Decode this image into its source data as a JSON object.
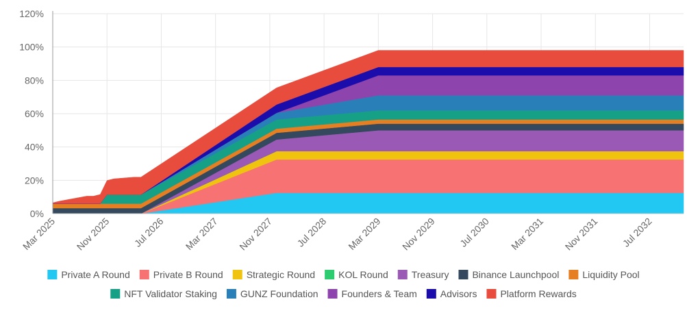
{
  "chart_data": {
    "type": "area",
    "stacked": true,
    "x": [
      "2025-03",
      "2025-04",
      "2025-08",
      "2025-09",
      "2025-10",
      "2025-11",
      "2025-12",
      "2026-03",
      "2026-04",
      "2027-12",
      "2029-03",
      "2032-12"
    ],
    "x_ticks": [
      "Mar 2025",
      "Nov 2025",
      "Jul 2026",
      "Mar 2027",
      "Nov 2027",
      "Jul 2028",
      "Mar 2029",
      "Nov 2029",
      "Jul 2030",
      "Mar 2031",
      "Nov 2031",
      "Jul 2032"
    ],
    "y_ticks": [
      "0%",
      "20%",
      "40%",
      "60%",
      "80%",
      "100%",
      "120%"
    ],
    "ylim": [
      0,
      120
    ],
    "y_unit": "%",
    "grid": true,
    "legend_position": "bottom",
    "series": [
      {
        "name": "Private A Round",
        "color": "#22c7f2",
        "values": [
          0,
          0,
          0,
          0,
          0,
          0,
          0,
          0,
          0,
          12.5,
          12.5,
          12.5
        ]
      },
      {
        "name": "Private B Round",
        "color": "#f77272",
        "values": [
          0,
          0,
          0,
          0,
          0,
          0,
          0,
          0,
          0,
          20,
          20,
          20
        ]
      },
      {
        "name": "Strategic Round",
        "color": "#f0c30f",
        "values": [
          0,
          0,
          0,
          0,
          0,
          0,
          0,
          0,
          0,
          5,
          5,
          5
        ]
      },
      {
        "name": "KOL Round",
        "color": "#2ecc71",
        "values": [
          0,
          0,
          0,
          0,
          0,
          0,
          0,
          0,
          0,
          0,
          0,
          0
        ]
      },
      {
        "name": "Treasury",
        "color": "#9b59b6",
        "values": [
          0,
          0,
          0,
          0,
          0,
          0,
          0,
          0,
          0,
          7,
          12.5,
          12.5
        ]
      },
      {
        "name": "Binance Launchpool",
        "color": "#34495e",
        "values": [
          3.3,
          3.3,
          3.3,
          3.3,
          3.3,
          3.3,
          3.3,
          3.3,
          3.3,
          4,
          4,
          4
        ]
      },
      {
        "name": "Liquidity Pool",
        "color": "#e67e22",
        "values": [
          2.7,
          2.7,
          2.7,
          2.7,
          2.7,
          2.7,
          2.7,
          2.7,
          2.7,
          2.5,
          2.5,
          2.5
        ]
      },
      {
        "name": "NFT Validator Staking",
        "color": "#16a085",
        "values": [
          0,
          0,
          0,
          0,
          0,
          5.4,
          5.4,
          5.4,
          5.4,
          5.5,
          5.5,
          5.5
        ]
      },
      {
        "name": "GUNZ Foundation",
        "color": "#2980b9",
        "values": [
          0,
          0,
          0,
          0,
          0,
          0,
          0,
          0,
          0,
          4,
          9,
          9
        ]
      },
      {
        "name": "Founders & Team",
        "color": "#8e44ad",
        "values": [
          0,
          0,
          0,
          0,
          0,
          0,
          0,
          0,
          0,
          0,
          12,
          12
        ]
      },
      {
        "name": "Advisors",
        "color": "#1a0dab",
        "values": [
          0,
          0,
          0,
          0,
          0,
          0,
          0,
          0,
          0,
          5,
          5,
          5
        ]
      },
      {
        "name": "Platform Rewards",
        "color": "#e74c3c",
        "values": [
          0.5,
          1.5,
          4.5,
          4.5,
          5.5,
          8.5,
          9.5,
          10.5,
          10.5,
          10,
          10,
          10
        ]
      }
    ]
  }
}
